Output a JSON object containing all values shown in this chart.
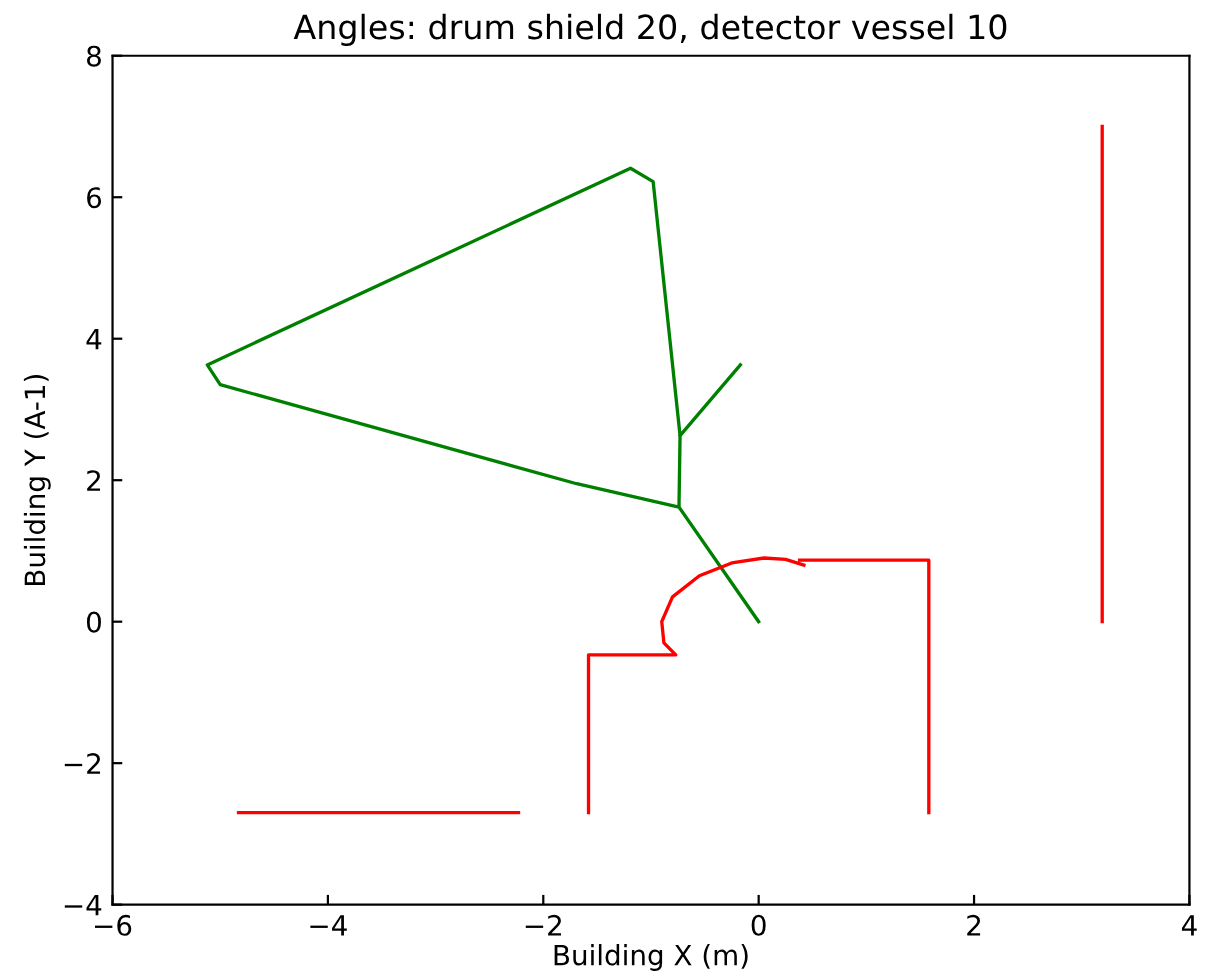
{
  "chart_data": {
    "type": "line",
    "title": "Angles: drum shield 20, detector vessel 10",
    "xlabel": "Building X (m)",
    "ylabel": "Building Y (A-1)",
    "xlim": [
      -6,
      4
    ],
    "ylim": [
      -4,
      8
    ],
    "xticks": [
      -6,
      -4,
      -2,
      0,
      2,
      4
    ],
    "yticks": [
      -4,
      -2,
      0,
      2,
      4,
      6,
      8
    ],
    "grid": false,
    "marker": "none",
    "line_style": "solid",
    "series": [
      {
        "color": "#008000",
        "x": [
          0,
          -0.74,
          -0.73,
          -0.98,
          -1.19,
          -5.12,
          -5.0,
          -1.69,
          -0.74,
          null,
          -0.73,
          -0.17
        ],
        "values": [
          0,
          1.62,
          2.63,
          6.22,
          6.41,
          3.63,
          3.35,
          1.95,
          1.62,
          null,
          2.63,
          3.63
        ]
      },
      {
        "color": "#ff0000",
        "x": [
          -4.83,
          -2.23,
          null,
          3.19,
          3.19,
          null,
          -1.58,
          -1.58,
          -0.77,
          -0.88,
          -0.9,
          -0.8,
          -0.55,
          -0.25,
          0.05,
          0.25,
          0.42,
          null,
          0.38,
          1.58,
          1.58
        ],
        "values": [
          -2.7,
          -2.7,
          null,
          0,
          7.0,
          null,
          -2.7,
          -0.47,
          -0.47,
          -0.3,
          0.0,
          0.35,
          0.65,
          0.83,
          0.9,
          0.88,
          0.8,
          null,
          0.87,
          0.87,
          -2.7
        ]
      }
    ]
  }
}
